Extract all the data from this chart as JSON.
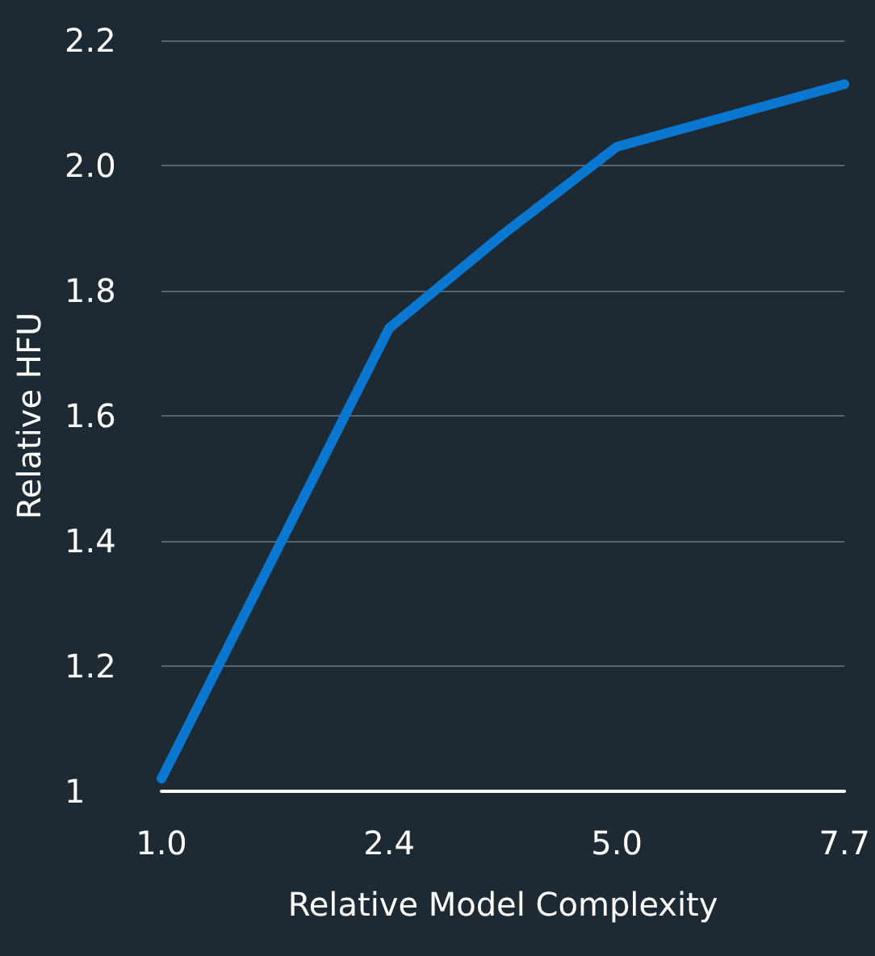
{
  "chart_data": {
    "type": "line",
    "xlabel": "Relative Model Complexity",
    "ylabel": "Relative HFU",
    "categories": [
      "1.0",
      null,
      "2.4",
      null,
      "5.0",
      null,
      "7.7"
    ],
    "series": [
      {
        "color": "#0a78d0",
        "values": [
          1.02,
          null,
          1.74,
          1.89,
          2.03,
          null,
          2.13
        ]
      }
    ],
    "ylim": [
      1,
      2.2
    ],
    "yticks": [
      1,
      {
        "value": 1.2,
        "label": "1.2"
      },
      {
        "value": 1.4,
        "label": "1.4"
      },
      {
        "value": 1.6,
        "label": "1.6"
      },
      {
        "value": 1.8,
        "label": "1.8"
      },
      {
        "value": 2,
        "label": "2.0"
      },
      {
        "value": 2.2,
        "label": "2.2"
      }
    ],
    "grid": "y",
    "marker": "none",
    "line_style": "solid"
  }
}
